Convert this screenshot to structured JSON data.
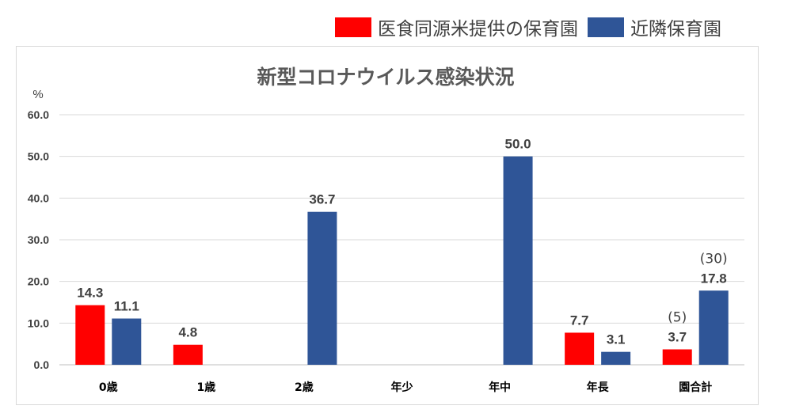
{
  "chart_data": {
    "type": "bar",
    "title": "新型コロナウイルス感染状況",
    "ylabel": "%",
    "xlabel": "",
    "ylim": [
      0,
      60
    ],
    "yticks": [
      "0.0",
      "10.0",
      "20.0",
      "30.0",
      "40.0",
      "50.0",
      "60.0"
    ],
    "grid": true,
    "legend_position": "top-right",
    "categories": [
      "0歳",
      "1歳",
      "2歳",
      "年少",
      "年中",
      "年長",
      "園合計"
    ],
    "series": [
      {
        "name": "医食同源米提供の保育園",
        "color": "#ff0000",
        "values": [
          14.3,
          4.8,
          null,
          null,
          null,
          7.7,
          3.7
        ],
        "labels": [
          "14.3",
          "4.8",
          null,
          null,
          null,
          "7.7",
          "3.7"
        ]
      },
      {
        "name": "近隣保育園",
        "color": "#2f5597",
        "values": [
          11.1,
          null,
          36.7,
          null,
          50.0,
          3.1,
          17.8
        ],
        "labels": [
          "11.1",
          null,
          "36.7",
          null,
          "50.0",
          "3.1",
          "17.8"
        ]
      }
    ],
    "annotations": [
      {
        "category": "園合計",
        "series": 0,
        "text": "(5)"
      },
      {
        "category": "園合計",
        "series": 1,
        "text": "(30)"
      }
    ]
  }
}
